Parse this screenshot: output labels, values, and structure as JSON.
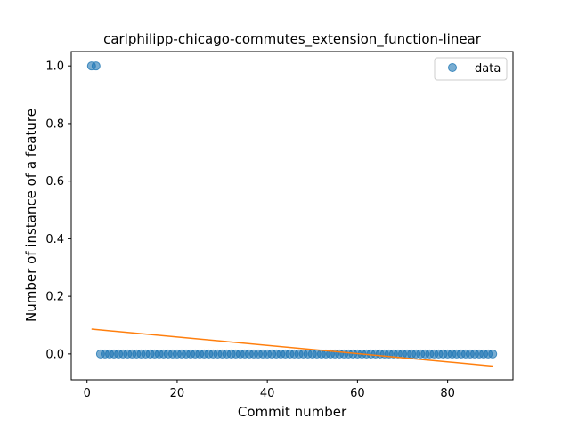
{
  "chart_data": {
    "type": "scatter",
    "title": "carlphilipp-chicago-commutes_extension_function-linear",
    "xlabel": "Commit number",
    "ylabel": "Number of instance of a feature",
    "xlim": [
      -3.5,
      94.5
    ],
    "ylim": [
      -0.09,
      1.05
    ],
    "xticks": [
      0,
      20,
      40,
      60,
      80
    ],
    "yticks": [
      0.0,
      0.2,
      0.4,
      0.6,
      0.8,
      1.0
    ],
    "xtick_labels": [
      "0",
      "20",
      "40",
      "60",
      "80"
    ],
    "ytick_labels": [
      "0.0",
      "0.2",
      "0.4",
      "0.6",
      "0.8",
      "1.0"
    ],
    "legend": {
      "placement": "top-right",
      "entries": [
        "data"
      ]
    },
    "grid": false,
    "series": [
      {
        "name": "data",
        "kind": "scatter",
        "color": "#1f77b4",
        "x_start": 1,
        "x_end": 90,
        "nonzero_points": [
          [
            1,
            1.0
          ],
          [
            2,
            1.0
          ]
        ],
        "default_y": 0.0
      },
      {
        "kind": "line",
        "color": "#ff7f0e",
        "x": [
          1,
          90
        ],
        "y": [
          0.086,
          -0.042
        ]
      }
    ]
  }
}
